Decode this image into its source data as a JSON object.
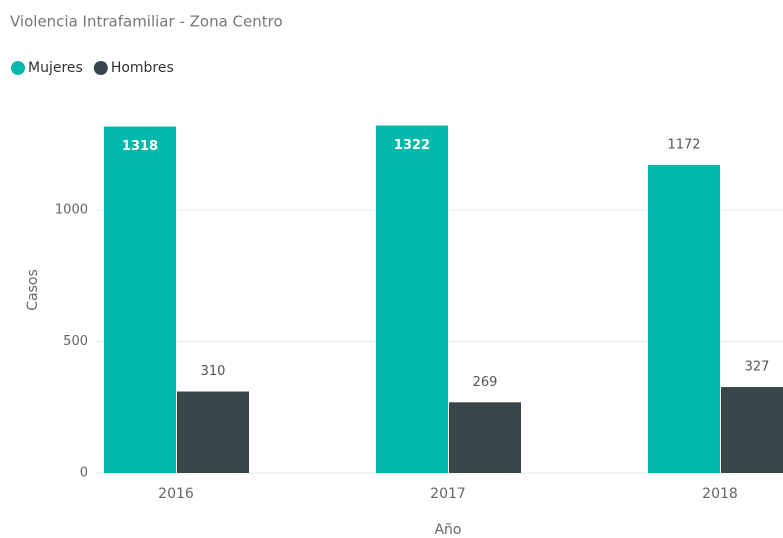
{
  "chart_data": {
    "type": "bar",
    "title": "Violencia Intrafamiliar - Zona Centro",
    "x_label": "Año",
    "y_label": "Casos",
    "categories": [
      "2016",
      "2017",
      "2018"
    ],
    "series": [
      {
        "name": "Mujeres",
        "color": "#01b8aa",
        "values": [
          1318,
          1322,
          1172
        ]
      },
      {
        "name": "Hombres",
        "color": "#374649",
        "values": [
          310,
          269,
          327
        ]
      }
    ],
    "ylim": [
      0,
      1400
    ],
    "yticks": [
      0,
      500,
      1000
    ],
    "grid": true,
    "legend": "top-left"
  }
}
